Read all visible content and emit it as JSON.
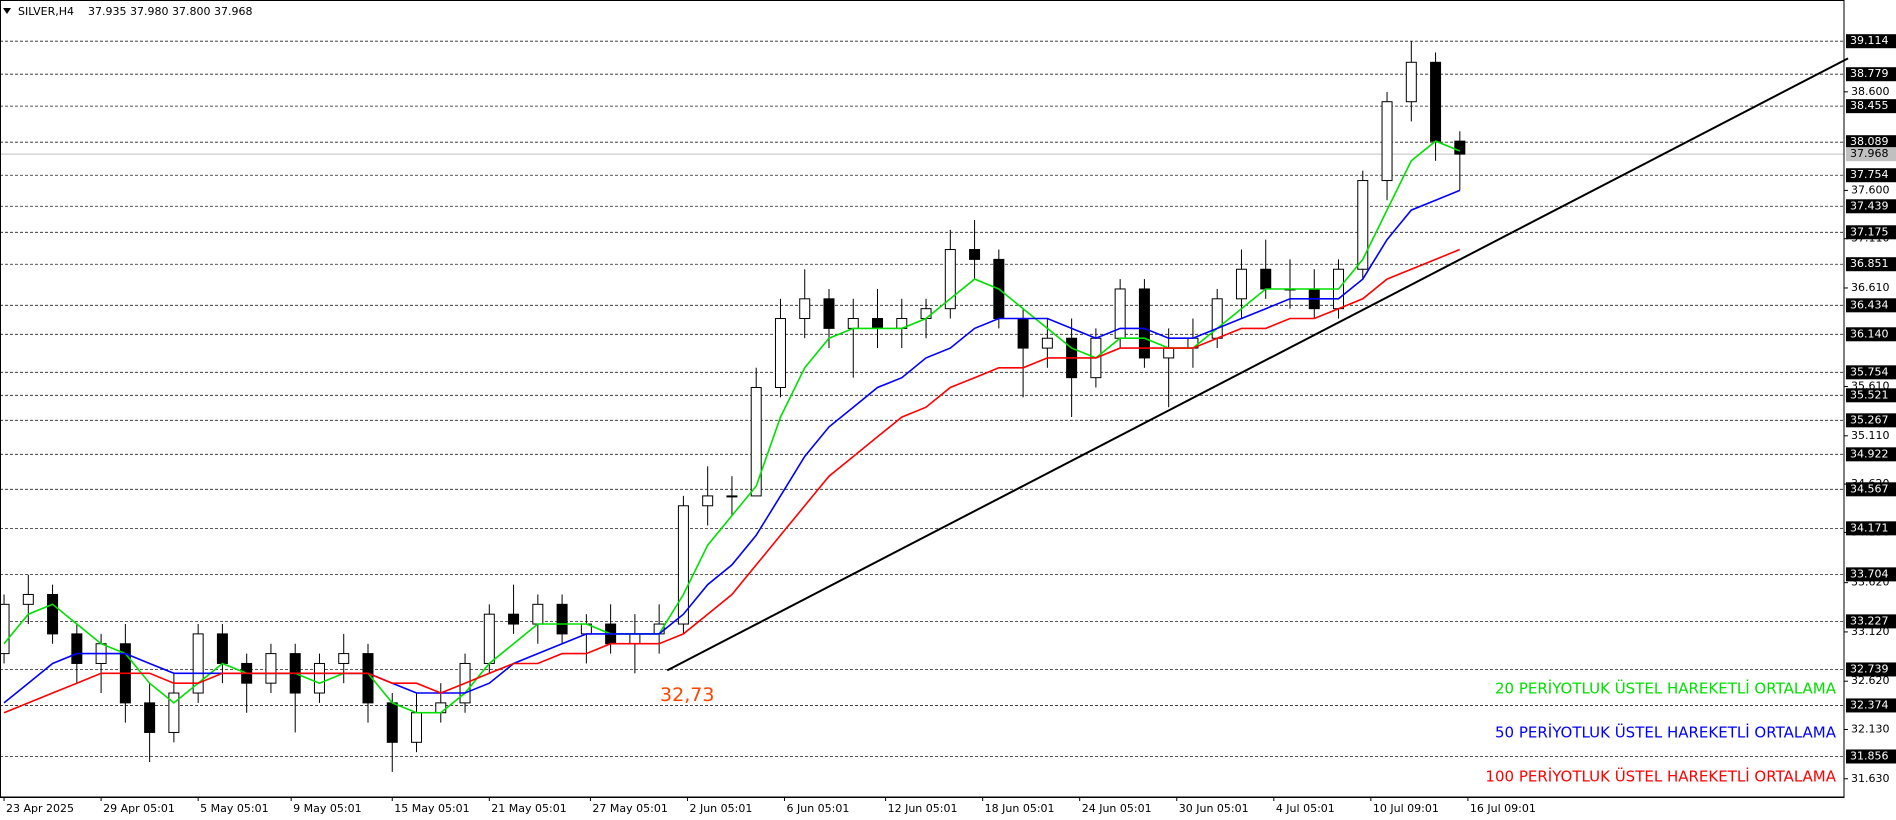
{
  "chart_data": {
    "type": "candlestick",
    "title": "SILVER,H4",
    "subtitle": "37.935 37.980 37.800 37.968",
    "xlim": [
      -1,
      455
    ],
    "ylim": [
      31.445,
      39.532
    ],
    "xticks": [
      {
        "value": 0,
        "label": "23 Apr 2025"
      },
      {
        "value": 24,
        "label": "29 Apr 05:01"
      },
      {
        "value": 48,
        "label": "5 May 05:01"
      },
      {
        "value": 71,
        "label": "9 May 05:01"
      },
      {
        "value": 96,
        "label": "15 May 05:01"
      },
      {
        "value": 120,
        "label": "21 May 05:01"
      },
      {
        "value": 145,
        "label": "27 May 05:01"
      },
      {
        "value": 169,
        "label": "2 Jun 05:01"
      },
      {
        "value": 193,
        "label": "6 Jun 05:01"
      },
      {
        "value": 218,
        "label": "12 Jun 05:01"
      },
      {
        "value": 242,
        "label": "18 Jun 05:01"
      },
      {
        "value": 266,
        "label": "24 Jun 05:01"
      },
      {
        "value": 290,
        "label": "30 Jun 05:01"
      },
      {
        "value": 314,
        "label": "4 Jul 05:01"
      },
      {
        "value": 338,
        "label": "10 Jul 09:01"
      },
      {
        "value": 362,
        "label": "16 Jul 09:01"
      }
    ],
    "yticks": [
      {
        "value": 38.6,
        "label": "38.600"
      },
      {
        "value": 37.6,
        "label": "37.600"
      },
      {
        "value": 37.11,
        "label": "37.110"
      },
      {
        "value": 36.61,
        "label": "36.610"
      },
      {
        "value": 35.61,
        "label": "35.610"
      },
      {
        "value": 35.11,
        "label": "35.110"
      },
      {
        "value": 34.62,
        "label": "34.620"
      },
      {
        "value": 34.13,
        "label": "34.130"
      },
      {
        "value": 33.62,
        "label": "33.620"
      },
      {
        "value": 33.12,
        "label": "33.120"
      },
      {
        "value": 32.62,
        "label": "32.620"
      },
      {
        "value": 32.13,
        "label": "32.130"
      },
      {
        "value": 31.63,
        "label": "31.630"
      }
    ],
    "levels": [
      {
        "value": 39.114,
        "label": "39.114"
      },
      {
        "value": 38.779,
        "label": "38.779"
      },
      {
        "value": 38.455,
        "label": "38.455"
      },
      {
        "value": 38.089,
        "label": "38.089"
      },
      {
        "value": 37.754,
        "label": "37.754"
      },
      {
        "value": 37.439,
        "label": "37.439"
      },
      {
        "value": 37.175,
        "label": "37.175"
      },
      {
        "value": 36.851,
        "label": "36.851"
      },
      {
        "value": 36.434,
        "label": "36.434"
      },
      {
        "value": 36.14,
        "label": "36.140"
      },
      {
        "value": 35.754,
        "label": "35.754"
      },
      {
        "value": 35.521,
        "label": "35.521"
      },
      {
        "value": 35.267,
        "label": "35.267"
      },
      {
        "value": 34.922,
        "label": "34.922"
      },
      {
        "value": 34.567,
        "label": "34.567"
      },
      {
        "value": 34.171,
        "label": "34.171"
      },
      {
        "value": 33.704,
        "label": "33.704"
      },
      {
        "value": 33.227,
        "label": "33.227"
      },
      {
        "value": 32.739,
        "label": "32.739"
      },
      {
        "value": 32.374,
        "label": "32.374"
      },
      {
        "value": 31.856,
        "label": "31.856"
      }
    ],
    "current_price": {
      "value": 37.968,
      "label": "37.968"
    },
    "x": [
      0,
      6,
      12,
      18,
      24,
      30,
      36,
      42,
      48,
      54,
      60,
      66,
      72,
      78,
      84,
      90,
      96,
      102,
      108,
      114,
      120,
      126,
      132,
      138,
      144,
      150,
      156,
      162,
      168,
      174,
      180,
      186,
      192,
      198,
      204,
      210,
      216,
      222,
      228,
      234,
      240,
      246,
      252,
      258,
      264,
      270,
      276,
      282,
      288,
      294,
      300,
      306,
      312,
      318,
      324,
      330,
      336,
      342,
      348,
      354,
      360
    ],
    "open": [
      32.9,
      33.4,
      33.5,
      33.1,
      32.8,
      33.0,
      32.4,
      32.1,
      32.5,
      33.1,
      32.8,
      32.6,
      32.9,
      32.5,
      32.8,
      32.9,
      32.4,
      32.0,
      32.3,
      32.4,
      32.8,
      33.3,
      33.2,
      33.4,
      33.1,
      33.2,
      33.0,
      33.1,
      33.2,
      34.4,
      34.5,
      34.5,
      35.6,
      36.3,
      36.5,
      36.2,
      36.3,
      36.2,
      36.3,
      36.4,
      37.0,
      36.9,
      36.3,
      36.0,
      36.1,
      35.7,
      36.1,
      36.6,
      35.9,
      36.0,
      36.1,
      36.5,
      36.8,
      36.6,
      36.6,
      36.4,
      36.8,
      37.7,
      38.5,
      38.9,
      38.1
    ],
    "high": [
      33.5,
      33.7,
      33.6,
      33.2,
      33.1,
      33.2,
      32.6,
      32.7,
      33.2,
      33.2,
      32.9,
      33.0,
      33.0,
      32.9,
      33.1,
      33.0,
      32.5,
      32.5,
      32.6,
      32.9,
      33.4,
      33.6,
      33.5,
      33.5,
      33.3,
      33.4,
      33.3,
      33.4,
      34.5,
      34.8,
      34.7,
      35.8,
      36.5,
      36.8,
      36.6,
      36.5,
      36.6,
      36.5,
      36.5,
      37.2,
      37.3,
      37.0,
      36.4,
      36.3,
      36.3,
      36.2,
      36.7,
      36.7,
      36.2,
      36.3,
      36.6,
      37.0,
      37.1,
      36.9,
      36.8,
      36.9,
      37.8,
      38.6,
      39.114,
      39.0,
      38.2
    ],
    "low": [
      32.8,
      33.2,
      33.0,
      32.6,
      32.5,
      32.2,
      31.8,
      32.0,
      32.4,
      32.6,
      32.3,
      32.5,
      32.1,
      32.4,
      32.6,
      32.2,
      31.7,
      31.9,
      32.2,
      32.3,
      32.7,
      33.1,
      33.0,
      33.0,
      32.8,
      32.9,
      32.7,
      32.9,
      33.1,
      34.2,
      34.3,
      34.5,
      35.5,
      36.1,
      36.0,
      35.7,
      36.0,
      36.0,
      36.1,
      36.3,
      36.7,
      36.2,
      35.5,
      35.8,
      35.3,
      35.6,
      36.0,
      35.8,
      35.4,
      35.8,
      36.0,
      36.3,
      36.5,
      36.4,
      36.3,
      36.3,
      36.7,
      37.5,
      38.3,
      37.9,
      37.6
    ],
    "close": [
      33.4,
      33.5,
      33.1,
      32.8,
      33.0,
      32.4,
      32.1,
      32.5,
      33.1,
      32.8,
      32.6,
      32.9,
      32.5,
      32.8,
      32.9,
      32.4,
      32.0,
      32.3,
      32.4,
      32.8,
      33.3,
      33.2,
      33.4,
      33.1,
      33.2,
      33.0,
      33.1,
      33.2,
      34.4,
      34.5,
      34.5,
      35.6,
      36.3,
      36.5,
      36.2,
      36.3,
      36.2,
      36.3,
      36.4,
      37.0,
      36.9,
      36.3,
      36.0,
      36.1,
      35.7,
      36.1,
      36.6,
      35.9,
      36.0,
      36.1,
      36.5,
      36.8,
      36.6,
      36.6,
      36.4,
      36.8,
      37.7,
      38.5,
      38.9,
      38.1,
      37.968
    ],
    "series": [
      {
        "name": "20 PERİYOTLUK ÜSTEL HAREKETLİ ORTALAMA",
        "color": "#00e000",
        "values": [
          33.0,
          33.3,
          33.4,
          33.2,
          33.0,
          32.9,
          32.6,
          32.4,
          32.6,
          32.8,
          32.7,
          32.7,
          32.7,
          32.6,
          32.7,
          32.7,
          32.4,
          32.3,
          32.3,
          32.5,
          32.8,
          33.0,
          33.2,
          33.2,
          33.2,
          33.1,
          33.1,
          33.1,
          33.5,
          34.0,
          34.3,
          34.6,
          35.3,
          35.8,
          36.1,
          36.2,
          36.2,
          36.2,
          36.3,
          36.5,
          36.7,
          36.6,
          36.4,
          36.2,
          36.0,
          35.9,
          36.1,
          36.1,
          36.0,
          36.0,
          36.2,
          36.4,
          36.6,
          36.6,
          36.6,
          36.6,
          36.9,
          37.4,
          37.9,
          38.1,
          38.0
        ]
      },
      {
        "name": "50 PERİYOTLUK ÜSTEL HAREKETLİ ORTALAMA",
        "color": "#0000ff",
        "values": [
          32.4,
          32.6,
          32.8,
          32.9,
          32.9,
          32.9,
          32.8,
          32.7,
          32.7,
          32.7,
          32.7,
          32.7,
          32.7,
          32.7,
          32.7,
          32.7,
          32.6,
          32.5,
          32.5,
          32.5,
          32.6,
          32.8,
          32.9,
          33.0,
          33.1,
          33.1,
          33.1,
          33.1,
          33.3,
          33.6,
          33.8,
          34.1,
          34.5,
          34.9,
          35.2,
          35.4,
          35.6,
          35.7,
          35.9,
          36.0,
          36.2,
          36.3,
          36.3,
          36.3,
          36.2,
          36.1,
          36.2,
          36.2,
          36.1,
          36.1,
          36.2,
          36.3,
          36.4,
          36.5,
          36.5,
          36.5,
          36.7,
          37.1,
          37.4,
          37.5,
          37.6
        ]
      },
      {
        "name": "100 PERİYOTLUK ÜSTEL HAREKETLİ ORTALAMA",
        "color": "#ff0000",
        "values": [
          32.3,
          32.4,
          32.5,
          32.6,
          32.7,
          32.7,
          32.7,
          32.6,
          32.6,
          32.7,
          32.7,
          32.7,
          32.7,
          32.7,
          32.7,
          32.7,
          32.6,
          32.6,
          32.5,
          32.6,
          32.7,
          32.8,
          32.8,
          32.9,
          32.9,
          33.0,
          33.0,
          33.0,
          33.1,
          33.3,
          33.5,
          33.8,
          34.1,
          34.4,
          34.7,
          34.9,
          35.1,
          35.3,
          35.4,
          35.6,
          35.7,
          35.8,
          35.8,
          35.9,
          35.9,
          35.9,
          36.0,
          36.0,
          36.0,
          36.0,
          36.1,
          36.2,
          36.2,
          36.3,
          36.3,
          36.4,
          36.5,
          36.7,
          36.8,
          36.9,
          37.0
        ]
      }
    ],
    "trendline": {
      "x": [
        164,
        456
      ],
      "y": [
        32.73,
        38.94
      ],
      "color": "#000000"
    },
    "annotation": {
      "text": "32,73",
      "x": 164,
      "y": 32.73,
      "color": "#ff4400"
    }
  }
}
